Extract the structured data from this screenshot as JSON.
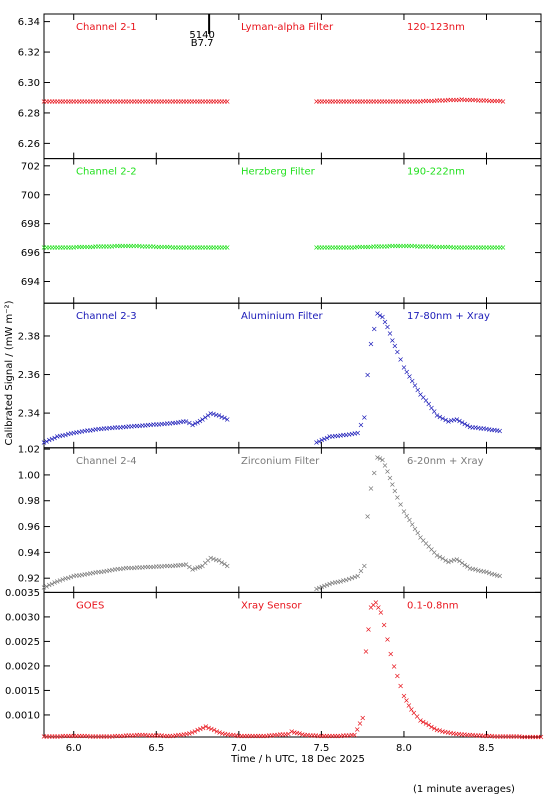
{
  "colors": {
    "red": "#e8141c",
    "green": "#22e01e",
    "blue": "#1a1ab8",
    "gray": "#7a7a7a",
    "black": "#000000"
  },
  "xaxis": {
    "title": "Time / h UTC, 18 Dec 2025",
    "ticks": [
      "6.0",
      "6.5",
      "7.0",
      "7.5",
      "8.0",
      "8.5"
    ],
    "tick_values": [
      6.0,
      6.5,
      7.0,
      7.5,
      8.0,
      8.5
    ],
    "range": [
      5.82,
      8.83
    ]
  },
  "ylabel": "Calibrated Signal / (mW m⁻²)",
  "footer": "(1 minute averages)",
  "marker": {
    "line1": "5140",
    "line2": "B7.7",
    "x": 6.82
  },
  "chart_data": [
    {
      "type": "scatter",
      "title": "Channel 2-1",
      "filter": "Lyman-alpha Filter",
      "band": "120-123nm",
      "color": "red",
      "ylim": [
        6.25,
        6.345
      ],
      "yticks": [
        "6.26",
        "6.28",
        "6.30",
        "6.32",
        "6.34"
      ],
      "ytick_values": [
        6.26,
        6.28,
        6.3,
        6.32,
        6.34
      ],
      "series": [
        {
          "x": [
            5.82,
            6.0,
            6.3,
            6.6,
            6.93
          ],
          "y": [
            6.288,
            6.288,
            6.288,
            6.288,
            6.288
          ]
        },
        {
          "x": [
            7.47,
            7.8,
            8.1,
            8.35,
            8.6
          ],
          "y": [
            6.288,
            6.288,
            6.288,
            6.289,
            6.288
          ]
        }
      ]
    },
    {
      "type": "scatter",
      "title": "Channel 2-2",
      "filter": "Herzberg Filter",
      "band": "190-222nm",
      "color": "green",
      "ylim": [
        692.5,
        702.5
      ],
      "yticks": [
        "694",
        "696",
        "698",
        "700",
        "702"
      ],
      "ytick_values": [
        694,
        696,
        698,
        700,
        702
      ],
      "series": [
        {
          "x": [
            5.82,
            6.0,
            6.33,
            6.6,
            6.93
          ],
          "y": [
            696.4,
            696.4,
            696.5,
            696.4,
            696.4
          ]
        },
        {
          "x": [
            7.47,
            7.7,
            7.98,
            8.3,
            8.6
          ],
          "y": [
            696.4,
            696.4,
            696.5,
            696.4,
            696.4
          ]
        }
      ]
    },
    {
      "type": "scatter",
      "title": "Channel 2-3",
      "filter": "Aluminium Filter",
      "band": "17-80nm + Xray",
      "color": "blue",
      "ylim": [
        2.322,
        2.397
      ],
      "yticks": [
        "2.34",
        "2.36",
        "2.38"
      ],
      "ytick_values": [
        2.34,
        2.36,
        2.38
      ],
      "series": [
        {
          "x": [
            5.82,
            5.9,
            6.0,
            6.15,
            6.3,
            6.45,
            6.6,
            6.68,
            6.72,
            6.78,
            6.83,
            6.88,
            6.93
          ],
          "y": [
            2.325,
            2.328,
            2.33,
            2.332,
            2.333,
            2.334,
            2.335,
            2.336,
            2.334,
            2.337,
            2.34,
            2.339,
            2.337
          ]
        },
        {
          "x": [
            7.47,
            7.55,
            7.65,
            7.72,
            7.76,
            7.78,
            7.8,
            7.84,
            7.87,
            7.9,
            7.93,
            7.96,
            8.0,
            8.05,
            8.1,
            8.15,
            8.2,
            8.27,
            8.32,
            8.4,
            8.5,
            8.58
          ],
          "y": [
            2.325,
            2.328,
            2.329,
            2.33,
            2.338,
            2.36,
            2.376,
            2.392,
            2.39,
            2.385,
            2.378,
            2.372,
            2.364,
            2.357,
            2.35,
            2.345,
            2.339,
            2.336,
            2.337,
            2.333,
            2.332,
            2.331
          ]
        }
      ]
    },
    {
      "type": "scatter",
      "title": "Channel 2-4",
      "filter": "Zirconium Filter",
      "band": "6-20nm + Xray",
      "color": "gray",
      "ylim": [
        0.909,
        1.021
      ],
      "yticks": [
        "0.92",
        "0.94",
        "0.96",
        "0.98",
        "1.00",
        "1.02"
      ],
      "ytick_values": [
        0.92,
        0.94,
        0.96,
        0.98,
        1.0,
        1.02
      ],
      "series": [
        {
          "x": [
            5.82,
            5.9,
            6.0,
            6.15,
            6.3,
            6.45,
            6.6,
            6.68,
            6.72,
            6.78,
            6.83,
            6.88,
            6.93
          ],
          "y": [
            0.913,
            0.918,
            0.922,
            0.925,
            0.928,
            0.929,
            0.93,
            0.931,
            0.927,
            0.93,
            0.936,
            0.934,
            0.93
          ]
        },
        {
          "x": [
            7.47,
            7.55,
            7.65,
            7.72,
            7.76,
            7.78,
            7.8,
            7.84,
            7.87,
            7.9,
            7.93,
            7.96,
            8.0,
            8.05,
            8.1,
            8.15,
            8.2,
            8.27,
            8.32,
            8.4,
            8.5,
            8.58
          ],
          "y": [
            0.912,
            0.916,
            0.919,
            0.922,
            0.93,
            0.968,
            0.99,
            1.014,
            1.012,
            1.003,
            0.993,
            0.983,
            0.972,
            0.962,
            0.952,
            0.945,
            0.938,
            0.933,
            0.935,
            0.928,
            0.925,
            0.922
          ]
        }
      ]
    },
    {
      "type": "scatter",
      "title": "GOES",
      "filter": "Xray Sensor",
      "band": "0.1-0.8nm",
      "color": "red",
      "ylim": [
        0.00055,
        0.0035
      ],
      "yticks": [
        "0.0010",
        "0.0015",
        "0.0020",
        "0.0025",
        "0.0030",
        "0.0035"
      ],
      "ytick_values": [
        0.001,
        0.0015,
        0.002,
        0.0025,
        0.003,
        0.0035
      ],
      "series": [
        {
          "x": [
            5.82,
            6.0,
            6.2,
            6.4,
            6.6,
            6.7,
            6.75,
            6.8,
            6.85,
            6.9,
            7.0,
            7.15,
            7.3,
            7.32,
            7.4,
            7.5,
            7.6,
            7.7,
            7.75
          ],
          "y": [
            0.00057,
            0.00058,
            0.00057,
            0.0006,
            0.00058,
            0.00063,
            0.0007,
            0.00077,
            0.0007,
            0.00063,
            0.00058,
            0.00058,
            0.00062,
            0.00067,
            0.0006,
            0.00058,
            0.00058,
            0.0006,
            0.00095
          ]
        },
        {
          "x": [
            7.77,
            7.8,
            7.83,
            7.86,
            7.88,
            7.9,
            7.92,
            7.94,
            7.96,
            7.98,
            8.0,
            8.03,
            8.06,
            8.1,
            8.15,
            8.2,
            8.3,
            8.4,
            8.5,
            8.6,
            8.83
          ],
          "y": [
            0.0023,
            0.0032,
            0.0033,
            0.0031,
            0.00285,
            0.00255,
            0.00225,
            0.002,
            0.0018,
            0.0016,
            0.0014,
            0.0012,
            0.00105,
            0.0009,
            0.0008,
            0.0007,
            0.00063,
            0.0006,
            0.00058,
            0.00057,
            0.00056
          ]
        }
      ]
    }
  ]
}
